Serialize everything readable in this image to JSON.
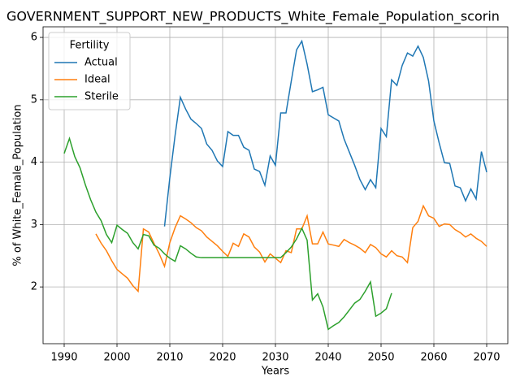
{
  "chart_data": {
    "type": "line",
    "title": "GOVERNMENT_SUPPORT_NEW_PRODUCTS_White_Female_Population_scorin",
    "xlabel": "Years",
    "ylabel": "% of White_Female_Population",
    "legend_title": "Fertility",
    "legend": "upper left",
    "grid": true,
    "x": [
      1990,
      1991,
      1992,
      1993,
      1994,
      1995,
      1996,
      1997,
      1998,
      1999,
      2000,
      2001,
      2002,
      2003,
      2004,
      2005,
      2006,
      2007,
      2008,
      2009,
      2010,
      2011,
      2012,
      2013,
      2014,
      2015,
      2016,
      2017,
      2018,
      2019,
      2020,
      2021,
      2022,
      2023,
      2024,
      2025,
      2026,
      2027,
      2028,
      2029,
      2030,
      2031,
      2032,
      2033,
      2034,
      2035,
      2036,
      2037,
      2038,
      2039,
      2040,
      2041,
      2042,
      2043,
      2044,
      2045,
      2046,
      2047,
      2048,
      2049,
      2050,
      2051,
      2052,
      2053,
      2054,
      2055,
      2056,
      2057,
      2058,
      2059,
      2060,
      2061,
      2062,
      2063,
      2064,
      2065,
      2066,
      2067,
      2068,
      2069,
      2070
    ],
    "xlim": [
      1986,
      2074
    ],
    "xticks": [
      1990,
      2000,
      2010,
      2020,
      2030,
      2040,
      2050,
      2060,
      2070
    ],
    "ylim": [
      1.09,
      6.17
    ],
    "yticks": [
      2,
      3,
      4,
      5,
      6
    ],
    "series": [
      {
        "name": "Actual",
        "color": "#1f77b4",
        "values": [
          null,
          null,
          null,
          null,
          null,
          null,
          null,
          null,
          null,
          null,
          null,
          null,
          null,
          null,
          null,
          null,
          null,
          null,
          null,
          2.97,
          3.75,
          4.43,
          5.04,
          4.85,
          4.69,
          4.62,
          4.54,
          4.29,
          4.19,
          4.02,
          3.93,
          4.49,
          4.43,
          4.43,
          4.24,
          4.19,
          3.89,
          3.85,
          3.63,
          4.1,
          3.95,
          4.79,
          4.79,
          5.3,
          5.8,
          5.94,
          5.57,
          5.13,
          5.16,
          5.2,
          4.76,
          4.71,
          4.66,
          4.37,
          4.16,
          3.95,
          3.72,
          3.56,
          3.72,
          3.59,
          4.54,
          4.41,
          5.32,
          5.23,
          5.55,
          5.75,
          5.7,
          5.86,
          5.68,
          5.3,
          4.66,
          4.31,
          3.99,
          3.98,
          3.62,
          3.59,
          3.38,
          3.57,
          3.41,
          4.17,
          3.84
        ]
      },
      {
        "name": "Ideal",
        "color": "#ff7f0e",
        "values": [
          null,
          null,
          null,
          null,
          null,
          null,
          2.85,
          2.7,
          2.58,
          2.42,
          2.28,
          2.21,
          2.14,
          2.02,
          1.93,
          2.93,
          2.88,
          2.7,
          2.53,
          2.33,
          2.71,
          2.95,
          3.14,
          3.09,
          3.03,
          2.95,
          2.9,
          2.8,
          2.73,
          2.66,
          2.57,
          2.49,
          2.7,
          2.65,
          2.85,
          2.8,
          2.64,
          2.56,
          2.4,
          2.53,
          2.46,
          2.39,
          2.58,
          2.55,
          2.93,
          2.93,
          3.14,
          2.69,
          2.69,
          2.88,
          2.69,
          2.67,
          2.65,
          2.76,
          2.71,
          2.67,
          2.62,
          2.55,
          2.68,
          2.63,
          2.53,
          2.48,
          2.58,
          2.5,
          2.48,
          2.39,
          2.95,
          3.05,
          3.3,
          3.14,
          3.1,
          2.97,
          3.01,
          3.0,
          2.92,
          2.87,
          2.8,
          2.85,
          2.78,
          2.73,
          2.65
        ]
      },
      {
        "name": "Sterile",
        "color": "#2ca02c",
        "values": [
          4.14,
          4.38,
          4.09,
          3.91,
          3.64,
          3.4,
          3.2,
          3.06,
          2.84,
          2.71,
          2.99,
          2.92,
          2.86,
          2.71,
          2.61,
          2.84,
          2.82,
          2.67,
          2.62,
          2.53,
          2.46,
          2.41,
          2.66,
          2.61,
          2.54,
          2.48,
          2.47,
          2.47,
          2.47,
          2.47,
          2.47,
          2.47,
          2.47,
          2.47,
          2.47,
          2.47,
          2.47,
          2.47,
          2.47,
          2.47,
          2.47,
          2.47,
          2.55,
          2.64,
          2.77,
          2.94,
          2.75,
          1.79,
          1.89,
          1.68,
          1.32,
          1.38,
          1.43,
          1.52,
          1.63,
          1.74,
          1.8,
          1.93,
          2.08,
          1.53,
          1.58,
          1.65,
          1.9,
          null,
          null,
          null,
          null,
          null,
          null,
          null,
          null,
          null,
          null,
          null,
          null,
          null,
          null,
          null,
          null,
          null,
          null
        ]
      }
    ]
  }
}
